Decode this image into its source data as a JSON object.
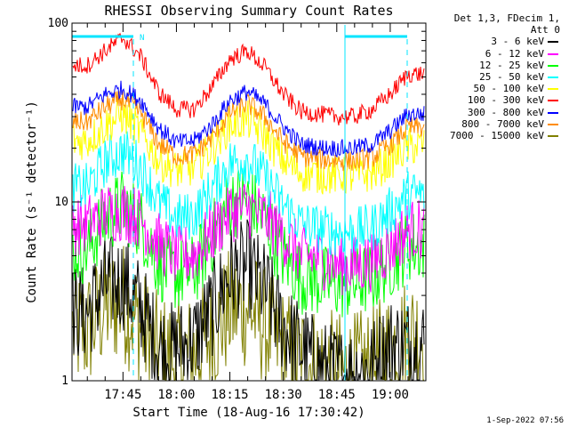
{
  "chart_data": {
    "type": "line",
    "title": "RHESSI Observing Summary Count Rates",
    "xlabel": "Start Time (18-Aug-16 17:30:42)",
    "ylabel": "Count Rate (s⁻¹ detector⁻¹)",
    "yscale": "log",
    "ylim": [
      1,
      100
    ],
    "y_ticks": [
      "1",
      "10",
      "100"
    ],
    "x_ticks": [
      "17:45",
      "18:00",
      "18:15",
      "18:30",
      "18:45",
      "19:00"
    ],
    "xlim_minutes": [
      30.7,
      130
    ],
    "legend_header": [
      "Det 1,3, FDecim 1,",
      "Att 0"
    ],
    "flag_marker": "N",
    "series": [
      {
        "name": "3 - 6 keV",
        "color": "#000000",
        "x_min": [
          35,
          40,
          45,
          50,
          55,
          60,
          65,
          70,
          75,
          80,
          85,
          90,
          95,
          100,
          105,
          110,
          115,
          120,
          125
        ],
        "values": [
          2.4,
          3.5,
          3.6,
          2.6,
          1.5,
          1.5,
          1.7,
          2.5,
          4.0,
          4.3,
          3.2,
          2.0,
          1.5,
          1.2,
          1.1,
          1.1,
          1.2,
          1.6,
          1.6
        ]
      },
      {
        "name": "6 - 12 keV",
        "color": "#ff00ff",
        "x_min": [
          35,
          40,
          45,
          50,
          55,
          60,
          65,
          70,
          75,
          80,
          85,
          90,
          95,
          100,
          105,
          110,
          115,
          120,
          125
        ],
        "values": [
          7.5,
          8.6,
          9.0,
          8.1,
          5.9,
          5.0,
          5.1,
          6.7,
          8.8,
          9.3,
          8.2,
          6.5,
          5.0,
          4.9,
          4.5,
          4.4,
          4.7,
          5.6,
          7.0
        ]
      },
      {
        "name": "12 - 25 keV",
        "color": "#00ff00",
        "x_min": [
          35,
          40,
          45,
          50,
          55,
          60,
          65,
          70,
          75,
          80,
          85,
          90,
          95,
          100,
          105,
          110,
          115,
          120,
          125
        ],
        "values": [
          5.5,
          8.1,
          9.6,
          7.6,
          4.5,
          3.9,
          4.1,
          6.3,
          10.0,
          10.3,
          7.8,
          5.0,
          3.8,
          3.6,
          3.5,
          3.5,
          3.8,
          4.6,
          5.7
        ]
      },
      {
        "name": "25 - 50 keV",
        "color": "#00ffff",
        "x_min": [
          35,
          40,
          45,
          50,
          55,
          60,
          65,
          70,
          75,
          80,
          85,
          90,
          95,
          100,
          105,
          110,
          115,
          120,
          125
        ],
        "values": [
          12,
          16.7,
          19.3,
          15.7,
          10,
          8.1,
          8.4,
          11.8,
          16.5,
          17.4,
          13.5,
          9.6,
          7.5,
          7.1,
          6.8,
          6.8,
          7.2,
          8.9,
          11
        ]
      },
      {
        "name": "50 - 100 keV",
        "color": "#ffff00",
        "x_min": [
          35,
          40,
          45,
          50,
          55,
          60,
          65,
          70,
          75,
          80,
          85,
          90,
          95,
          100,
          105,
          110,
          115,
          120,
          125
        ],
        "values": [
          22,
          26.6,
          30.8,
          24.7,
          17,
          15,
          15.6,
          20,
          27,
          28.8,
          23.4,
          17,
          14.5,
          14.2,
          14,
          14,
          14.5,
          17,
          20.5
        ]
      },
      {
        "name": "100 - 300 keV",
        "color": "#ff0000",
        "x_min": [
          35,
          40,
          45,
          50,
          55,
          60,
          65,
          70,
          75,
          80,
          85,
          90,
          95,
          100,
          105,
          110,
          115,
          120,
          125
        ],
        "values": [
          58,
          70,
          83,
          65,
          41,
          33,
          33,
          44,
          63,
          70,
          56,
          40,
          32,
          31,
          30,
          30,
          33,
          40,
          52
        ]
      },
      {
        "name": "300 - 800 keV",
        "color": "#0000ff",
        "x_min": [
          35,
          40,
          45,
          50,
          55,
          60,
          65,
          70,
          75,
          80,
          85,
          90,
          95,
          100,
          105,
          110,
          115,
          120,
          125
        ],
        "values": [
          34,
          40,
          43,
          37,
          26,
          21.5,
          22,
          27,
          37,
          41.5,
          35,
          26.3,
          21,
          20.2,
          20,
          20,
          21,
          25,
          31
        ]
      },
      {
        "name": "800 - 7000 keV",
        "color": "#ff8c00",
        "x_min": [
          35,
          40,
          45,
          50,
          55,
          60,
          65,
          70,
          75,
          80,
          85,
          90,
          95,
          100,
          105,
          110,
          115,
          120,
          125
        ],
        "values": [
          28,
          34,
          37.5,
          31.5,
          21.2,
          18,
          18.4,
          23,
          31.5,
          35.5,
          29.5,
          21.7,
          18,
          17.4,
          17,
          17,
          17.7,
          21,
          26
        ]
      },
      {
        "name": "7000 - 15000 keV",
        "color": "#808000",
        "x_min": [
          35,
          40,
          45,
          50,
          55,
          60,
          65,
          70,
          75,
          80,
          85,
          90,
          95,
          100,
          105,
          110,
          115,
          120,
          125
        ],
        "values": [
          1.9,
          2.6,
          2.8,
          2.0,
          1.4,
          1.3,
          1.4,
          1.8,
          2.5,
          2.6,
          2.0,
          1.5,
          1.3,
          1.2,
          1.1,
          1.1,
          1.2,
          1.5,
          1.8
        ]
      }
    ]
  },
  "footer_date": "1-Sep-2022 07:56"
}
